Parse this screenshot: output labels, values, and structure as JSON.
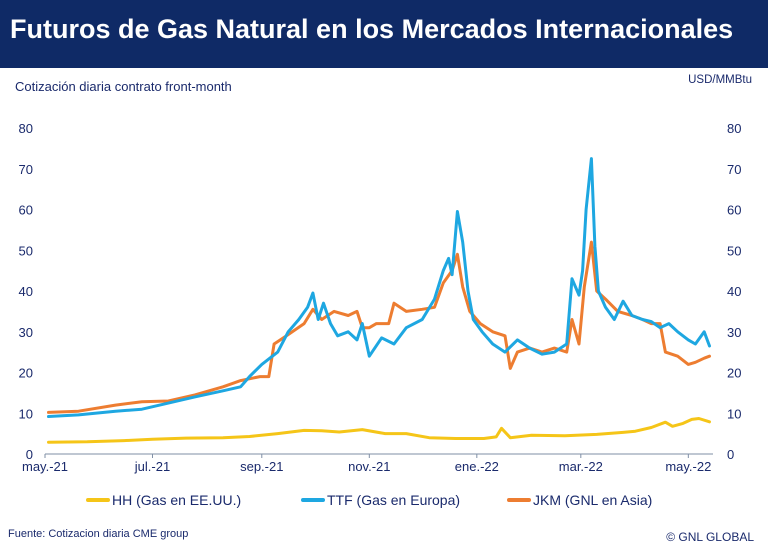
{
  "header": {
    "title": "Futuros de Gas Natural en los Mercados Internacionales",
    "subtitle": "Cotización diaria contrato front-month",
    "unit": "USD/MMBtu"
  },
  "footer": {
    "source": "Fuente: Cotizacion diaria CME group",
    "copyright": "© GNL GLOBAL"
  },
  "colors": {
    "title_bar": "#0f2a66",
    "text": "#1a2a6c"
  },
  "chart_data": {
    "type": "line",
    "xlabel": "",
    "ylabel": "",
    "ylim": [
      0,
      80
    ],
    "yticks": [
      0,
      10,
      20,
      30,
      40,
      50,
      60,
      70,
      80
    ],
    "xlim": [
      "2021-05-01",
      "2022-05-15"
    ],
    "xticks": [
      {
        "date": "2021-05-01",
        "label": "may.-21"
      },
      {
        "date": "2021-07-01",
        "label": "jul.-21"
      },
      {
        "date": "2021-09-01",
        "label": "sep.-21"
      },
      {
        "date": "2021-11-01",
        "label": "nov.-21"
      },
      {
        "date": "2022-01-01",
        "label": "ene.-22"
      },
      {
        "date": "2022-03-01",
        "label": "mar.-22"
      },
      {
        "date": "2022-05-01",
        "label": "may.-22"
      }
    ],
    "grid": false,
    "legend_position": "bottom",
    "series": [
      {
        "name": "HH (Gas en EE.UU.)",
        "color": "#f5c518",
        "points": [
          [
            "2021-05-03",
            2.9
          ],
          [
            "2021-05-25",
            3.0
          ],
          [
            "2021-06-15",
            3.3
          ],
          [
            "2021-07-01",
            3.6
          ],
          [
            "2021-07-20",
            3.9
          ],
          [
            "2021-08-10",
            4.0
          ],
          [
            "2021-08-25",
            4.3
          ],
          [
            "2021-09-10",
            5.0
          ],
          [
            "2021-09-25",
            5.8
          ],
          [
            "2021-10-05",
            5.7
          ],
          [
            "2021-10-15",
            5.4
          ],
          [
            "2021-10-28",
            6.0
          ],
          [
            "2021-11-10",
            5.0
          ],
          [
            "2021-11-22",
            5.0
          ],
          [
            "2021-12-05",
            4.0
          ],
          [
            "2021-12-20",
            3.8
          ],
          [
            "2022-01-05",
            3.8
          ],
          [
            "2022-01-12",
            4.2
          ],
          [
            "2022-01-15",
            6.3
          ],
          [
            "2022-01-20",
            4.0
          ],
          [
            "2022-02-01",
            4.6
          ],
          [
            "2022-02-20",
            4.5
          ],
          [
            "2022-03-10",
            4.8
          ],
          [
            "2022-03-25",
            5.3
          ],
          [
            "2022-04-01",
            5.6
          ],
          [
            "2022-04-10",
            6.5
          ],
          [
            "2022-04-18",
            7.8
          ],
          [
            "2022-04-22",
            6.8
          ],
          [
            "2022-04-28",
            7.5
          ],
          [
            "2022-05-03",
            8.5
          ],
          [
            "2022-05-07",
            8.7
          ],
          [
            "2022-05-13",
            7.9
          ]
        ]
      },
      {
        "name": "TTF (Gas en Europa)",
        "color": "#1ea7e1",
        "points": [
          [
            "2021-05-03",
            9.2
          ],
          [
            "2021-05-20",
            9.6
          ],
          [
            "2021-06-10",
            10.5
          ],
          [
            "2021-06-25",
            11.0
          ],
          [
            "2021-07-10",
            12.5
          ],
          [
            "2021-07-25",
            14.0
          ],
          [
            "2021-08-10",
            15.5
          ],
          [
            "2021-08-20",
            16.5
          ],
          [
            "2021-08-25",
            19.0
          ],
          [
            "2021-09-01",
            22.0
          ],
          [
            "2021-09-10",
            25.0
          ],
          [
            "2021-09-16",
            30.0
          ],
          [
            "2021-09-22",
            33.0
          ],
          [
            "2021-09-27",
            36.0
          ],
          [
            "2021-09-30",
            39.5
          ],
          [
            "2021-10-03",
            33.0
          ],
          [
            "2021-10-06",
            37.0
          ],
          [
            "2021-10-10",
            32.0
          ],
          [
            "2021-10-14",
            29.0
          ],
          [
            "2021-10-20",
            30.0
          ],
          [
            "2021-10-25",
            28.0
          ],
          [
            "2021-10-28",
            32.0
          ],
          [
            "2021-11-01",
            24.0
          ],
          [
            "2021-11-08",
            28.5
          ],
          [
            "2021-11-15",
            27.0
          ],
          [
            "2021-11-22",
            31.0
          ],
          [
            "2021-12-01",
            33.0
          ],
          [
            "2021-12-08",
            38.0
          ],
          [
            "2021-12-13",
            45.0
          ],
          [
            "2021-12-16",
            48.0
          ],
          [
            "2021-12-18",
            44.0
          ],
          [
            "2021-12-21",
            59.5
          ],
          [
            "2021-12-24",
            52.0
          ],
          [
            "2021-12-27",
            40.0
          ],
          [
            "2021-12-30",
            33.0
          ],
          [
            "2022-01-04",
            30.0
          ],
          [
            "2022-01-10",
            27.0
          ],
          [
            "2022-01-17",
            25.0
          ],
          [
            "2022-01-24",
            28.0
          ],
          [
            "2022-01-31",
            26.0
          ],
          [
            "2022-02-07",
            24.5
          ],
          [
            "2022-02-14",
            25.0
          ],
          [
            "2022-02-21",
            27.0
          ],
          [
            "2022-02-24",
            43.0
          ],
          [
            "2022-02-28",
            39.0
          ],
          [
            "2022-03-02",
            45.0
          ],
          [
            "2022-03-04",
            60.0
          ],
          [
            "2022-03-07",
            72.5
          ],
          [
            "2022-03-09",
            51.0
          ],
          [
            "2022-03-11",
            40.0
          ],
          [
            "2022-03-15",
            36.0
          ],
          [
            "2022-03-20",
            33.0
          ],
          [
            "2022-03-25",
            37.5
          ],
          [
            "2022-03-30",
            34.0
          ],
          [
            "2022-04-05",
            33.0
          ],
          [
            "2022-04-10",
            32.5
          ],
          [
            "2022-04-15",
            31.0
          ],
          [
            "2022-04-20",
            32.0
          ],
          [
            "2022-04-25",
            30.0
          ],
          [
            "2022-05-01",
            28.0
          ],
          [
            "2022-05-05",
            27.0
          ],
          [
            "2022-05-10",
            30.0
          ],
          [
            "2022-05-13",
            26.5
          ]
        ]
      },
      {
        "name": "JKM (GNL en Asia)",
        "color": "#ed7d31",
        "points": [
          [
            "2021-05-03",
            10.2
          ],
          [
            "2021-05-20",
            10.5
          ],
          [
            "2021-06-10",
            12.0
          ],
          [
            "2021-06-25",
            12.8
          ],
          [
            "2021-07-10",
            13.0
          ],
          [
            "2021-07-25",
            14.5
          ],
          [
            "2021-08-10",
            16.5
          ],
          [
            "2021-08-20",
            18.0
          ],
          [
            "2021-08-31",
            19.0
          ],
          [
            "2021-09-05",
            19.0
          ],
          [
            "2021-09-08",
            27.0
          ],
          [
            "2021-09-15",
            29.0
          ],
          [
            "2021-09-25",
            32.0
          ],
          [
            "2021-09-30",
            35.5
          ],
          [
            "2021-10-05",
            33.0
          ],
          [
            "2021-10-12",
            35.0
          ],
          [
            "2021-10-20",
            34.0
          ],
          [
            "2021-10-25",
            35.0
          ],
          [
            "2021-10-28",
            31.0
          ],
          [
            "2021-11-01",
            31.0
          ],
          [
            "2021-11-05",
            32.0
          ],
          [
            "2021-11-12",
            32.0
          ],
          [
            "2021-11-15",
            37.0
          ],
          [
            "2021-11-22",
            35.0
          ],
          [
            "2021-12-01",
            35.5
          ],
          [
            "2021-12-08",
            36.0
          ],
          [
            "2021-12-13",
            42.0
          ],
          [
            "2021-12-18",
            45.0
          ],
          [
            "2021-12-21",
            49.0
          ],
          [
            "2021-12-24",
            41.0
          ],
          [
            "2021-12-28",
            35.0
          ],
          [
            "2022-01-03",
            32.0
          ],
          [
            "2022-01-10",
            30.0
          ],
          [
            "2022-01-17",
            29.0
          ],
          [
            "2022-01-20",
            21.0
          ],
          [
            "2022-01-24",
            25.0
          ],
          [
            "2022-01-31",
            26.0
          ],
          [
            "2022-02-07",
            25.0
          ],
          [
            "2022-02-14",
            26.0
          ],
          [
            "2022-02-21",
            25.0
          ],
          [
            "2022-02-24",
            33.0
          ],
          [
            "2022-02-28",
            27.0
          ],
          [
            "2022-03-03",
            41.0
          ],
          [
            "2022-03-07",
            52.0
          ],
          [
            "2022-03-10",
            40.0
          ],
          [
            "2022-03-15",
            38.0
          ],
          [
            "2022-03-22",
            35.0
          ],
          [
            "2022-03-30",
            34.0
          ],
          [
            "2022-04-05",
            33.0
          ],
          [
            "2022-04-10",
            32.0
          ],
          [
            "2022-04-15",
            32.0
          ],
          [
            "2022-04-18",
            25.0
          ],
          [
            "2022-04-25",
            24.0
          ],
          [
            "2022-05-01",
            22.0
          ],
          [
            "2022-05-05",
            22.5
          ],
          [
            "2022-05-10",
            23.5
          ],
          [
            "2022-05-13",
            24.0
          ]
        ]
      }
    ]
  }
}
